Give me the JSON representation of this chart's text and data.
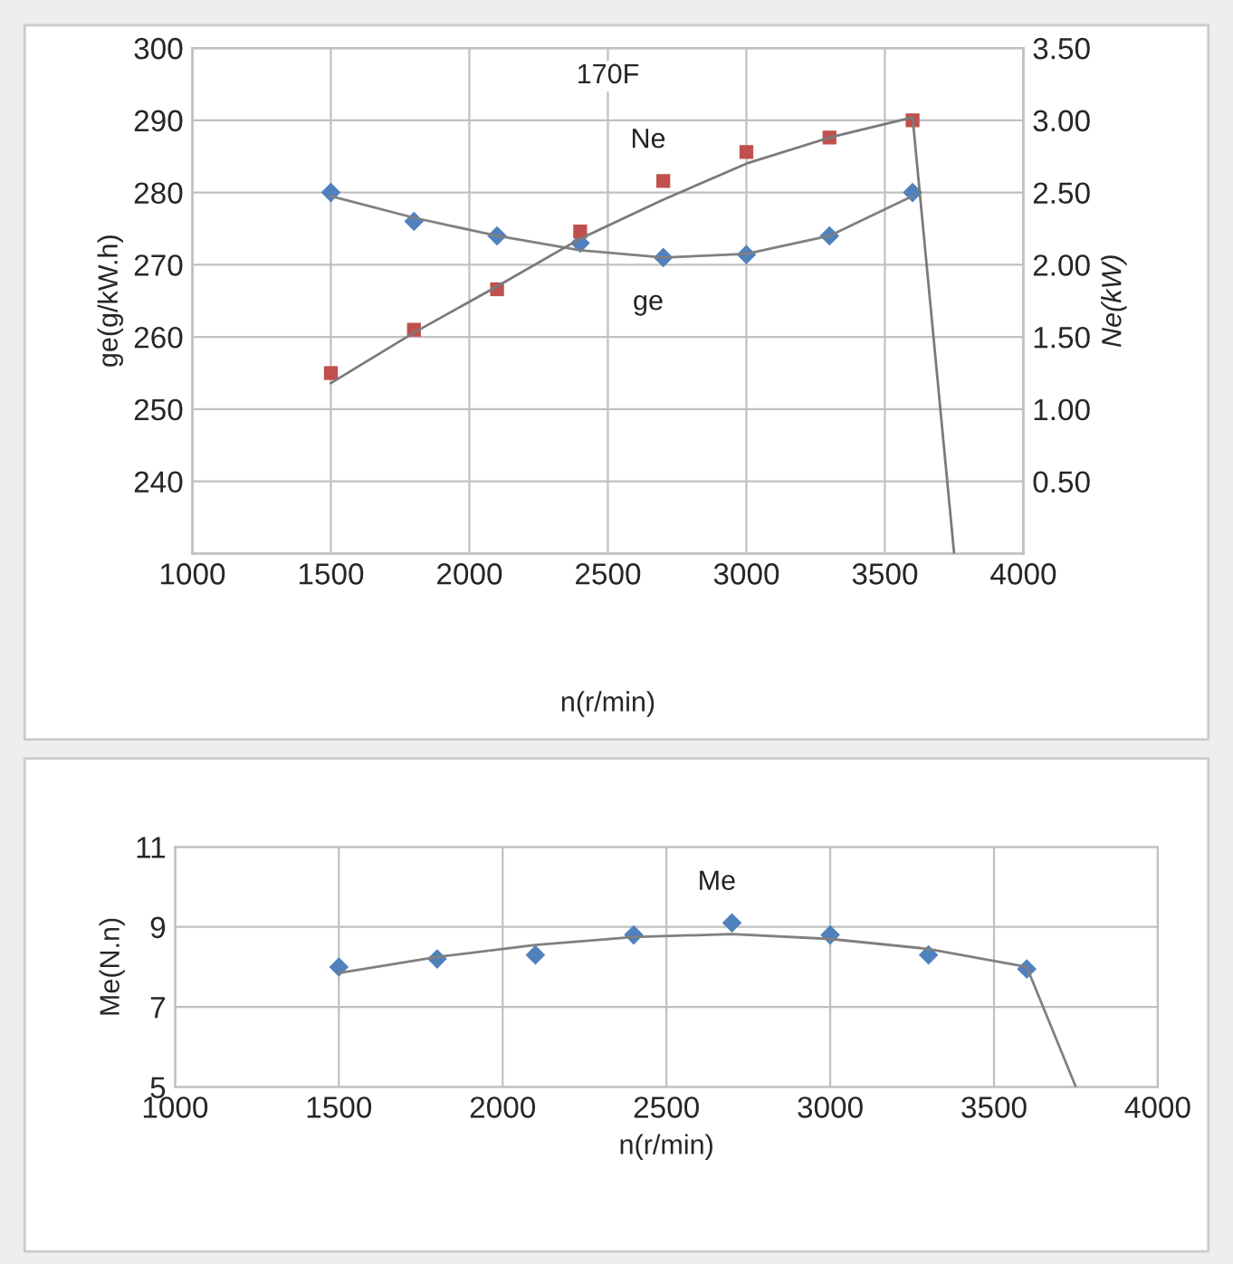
{
  "chart_data": [
    {
      "type": "scatter",
      "title": "170F",
      "xlabel": "n(r/min)",
      "ylabel": "ge(g/kW.h)",
      "y2label": "Ne(kW)",
      "xlim": [
        1000,
        4000
      ],
      "xticks": [
        1000,
        1500,
        2000,
        2500,
        3000,
        3500,
        4000
      ],
      "ylim": [
        230,
        300
      ],
      "yticks": [
        240,
        250,
        260,
        270,
        280,
        290,
        300
      ],
      "y2lim": [
        0,
        3.5
      ],
      "y2ticks": [
        {
          "value": 0.5,
          "label": "0.50"
        },
        {
          "value": 1.0,
          "label": "1.00"
        },
        {
          "value": 1.5,
          "label": "1.50"
        },
        {
          "value": 2.0,
          "label": "2.00"
        },
        {
          "value": 2.5,
          "label": "2.50"
        },
        {
          "value": 3.0,
          "label": "3.00"
        },
        {
          "value": 3.5,
          "label": "3.50"
        }
      ],
      "grid": true,
      "series": [
        {
          "name": "ge",
          "color": "#4f81bd",
          "marker": "diamond",
          "x": [
            1500,
            1800,
            2100,
            2400,
            2700,
            3000,
            3300,
            3600
          ],
          "values": [
            280,
            276,
            274,
            273,
            271,
            271.4,
            274,
            280
          ]
        },
        {
          "type": "line",
          "color": "#808080",
          "x": [
            1500,
            1800,
            2100,
            2400,
            2700,
            3000,
            3300,
            3600
          ],
          "values": [
            279.5,
            276.5,
            274,
            272,
            271,
            271.5,
            274,
            279.5
          ]
        },
        {
          "name": "Ne",
          "axis": "y2",
          "color": "#c0504d",
          "marker": "square",
          "x": [
            1500,
            1800,
            2100,
            2400,
            2700,
            3000,
            3300,
            3600
          ],
          "values": [
            1.25,
            1.55,
            1.83,
            2.23,
            2.58,
            2.78,
            2.88,
            3.0
          ]
        },
        {
          "type": "line",
          "axis": "y2",
          "color": "#7a7a7a",
          "x": [
            1500,
            1800,
            2100,
            2400,
            2700,
            3000,
            3300,
            3600,
            3750
          ],
          "values": [
            1.18,
            1.53,
            1.85,
            2.18,
            2.45,
            2.7,
            2.88,
            3.02,
            0
          ]
        }
      ]
    },
    {
      "type": "scatter",
      "xlabel": "n(r/min)",
      "ylabel": "Me(N.n)",
      "xlim": [
        1000,
        4000
      ],
      "xticks": [
        1000,
        1500,
        2000,
        2500,
        3000,
        3500,
        4000
      ],
      "ylim": [
        5,
        11
      ],
      "yticks": [
        5,
        7,
        9,
        11
      ],
      "grid": true,
      "series": [
        {
          "name": "Me",
          "color": "#4f81bd",
          "marker": "diamond",
          "x": [
            1500,
            1800,
            2100,
            2400,
            2700,
            3000,
            3300,
            3600
          ],
          "values": [
            8.0,
            8.2,
            8.3,
            8.8,
            9.1,
            8.8,
            8.3,
            7.95
          ]
        },
        {
          "type": "line",
          "color": "#808080",
          "x": [
            1500,
            1800,
            2100,
            2400,
            2700,
            3000,
            3300,
            3600,
            3750
          ],
          "values": [
            7.85,
            8.25,
            8.55,
            8.75,
            8.82,
            8.7,
            8.45,
            8.0,
            5.0
          ]
        }
      ]
    }
  ]
}
